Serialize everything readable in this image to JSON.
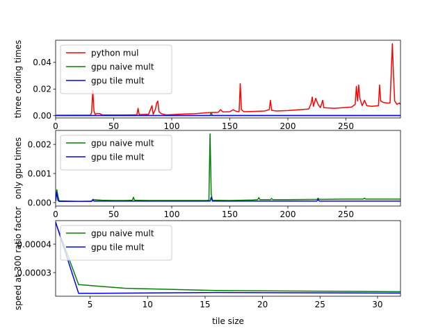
{
  "chart_data": [
    {
      "type": "line",
      "title": "",
      "xlabel": "",
      "ylabel": "three coding times",
      "xlim": [
        0,
        297
      ],
      "ylim": [
        -0.0017,
        0.0566
      ],
      "xticks": [
        0,
        50,
        100,
        150,
        200,
        250
      ],
      "yticks": [
        0.0,
        0.02,
        0.04
      ],
      "ytick_labels": [
        "0.00",
        "0.02",
        "0.04"
      ],
      "legend_position": "top-left",
      "series": [
        {
          "name": "python mul",
          "color": "#ff0000",
          "points": [
            [
              0,
              0.0003
            ],
            [
              30,
              0.0004
            ],
            [
              31,
              0.0025
            ],
            [
              32,
              0.019
            ],
            [
              33,
              0.0035
            ],
            [
              34,
              0.001
            ],
            [
              36,
              0.0017
            ],
            [
              38,
              0.0015
            ],
            [
              40,
              0.0006
            ],
            [
              45,
              0.0005
            ],
            [
              55,
              0.0005
            ],
            [
              65,
              0.0006
            ],
            [
              70,
              0.0007
            ],
            [
              71,
              0.0055
            ],
            [
              72,
              0.0008
            ],
            [
              80,
              0.001
            ],
            [
              83,
              0.0075
            ],
            [
              84,
              0.001
            ],
            [
              86,
              0.005
            ],
            [
              87,
              0.0095
            ],
            [
              88,
              0.011
            ],
            [
              89,
              0.003
            ],
            [
              91,
              0.0015
            ],
            [
              95,
              0.0006
            ],
            [
              100,
              0.0008
            ],
            [
              110,
              0.0012
            ],
            [
              120,
              0.0015
            ],
            [
              130,
              0.0022
            ],
            [
              140,
              0.0025
            ],
            [
              142,
              0.0045
            ],
            [
              144,
              0.0028
            ],
            [
              150,
              0.003
            ],
            [
              153,
              0.0045
            ],
            [
              154,
              0.0038
            ],
            [
              156,
              0.0032
            ],
            [
              158,
              0.003
            ],
            [
              159,
              0.024
            ],
            [
              160,
              0.0045
            ],
            [
              162,
              0.003
            ],
            [
              170,
              0.0032
            ],
            [
              180,
              0.0035
            ],
            [
              184,
              0.0045
            ],
            [
              185,
              0.0115
            ],
            [
              186,
              0.004
            ],
            [
              190,
              0.0035
            ],
            [
              200,
              0.0038
            ],
            [
              210,
              0.0045
            ],
            [
              218,
              0.005
            ],
            [
              220,
              0.009
            ],
            [
              221,
              0.014
            ],
            [
              222,
              0.007
            ],
            [
              224,
              0.013
            ],
            [
              226,
              0.0085
            ],
            [
              228,
              0.006
            ],
            [
              230,
              0.0115
            ],
            [
              231,
              0.006
            ],
            [
              240,
              0.0055
            ],
            [
              250,
              0.0062
            ],
            [
              255,
              0.0065
            ],
            [
              258,
              0.0085
            ],
            [
              259,
              0.022
            ],
            [
              260,
              0.011
            ],
            [
              261,
              0.023
            ],
            [
              262,
              0.013
            ],
            [
              264,
              0.0075
            ],
            [
              266,
              0.0115
            ],
            [
              268,
              0.0075
            ],
            [
              272,
              0.007
            ],
            [
              278,
              0.0075
            ],
            [
              279,
              0.023
            ],
            [
              280,
              0.011
            ],
            [
              282,
              0.01
            ],
            [
              285,
              0.0095
            ],
            [
              288,
              0.0095
            ],
            [
              290,
              0.054
            ],
            [
              291,
              0.03
            ],
            [
              292,
              0.011
            ],
            [
              294,
              0.0085
            ],
            [
              296,
              0.0095
            ],
            [
              297,
              0.0085
            ]
          ]
        },
        {
          "name": "gpu naive mult",
          "color": "#008000",
          "points": [
            [
              0,
              0.0001
            ],
            [
              133,
              0.0001
            ],
            [
              134,
              0.0024
            ],
            [
              135,
              0.0001
            ],
            [
              297,
              0.0001
            ]
          ]
        },
        {
          "name": "gpu tile mult",
          "color": "#0000ff",
          "points": [
            [
              0,
              0.0001
            ],
            [
              297,
              0.0001
            ]
          ]
        }
      ]
    },
    {
      "type": "line",
      "title": "",
      "xlabel": "",
      "ylabel": "only gpu times",
      "xlim": [
        0,
        297
      ],
      "ylim": [
        -0.00012,
        0.00248
      ],
      "xticks": [
        0,
        50,
        100,
        150,
        200,
        250
      ],
      "yticks": [
        0.0,
        0.001,
        0.002
      ],
      "ytick_labels": [
        "0.000",
        "0.001",
        "0.002"
      ],
      "legend_position": "top-left",
      "series": [
        {
          "name": "gpu naive mult",
          "color": "#008000",
          "points": [
            [
              0,
              5e-05
            ],
            [
              1,
              0.00044
            ],
            [
              2,
              0.00022
            ],
            [
              3,
              6e-05
            ],
            [
              10,
              5e-05
            ],
            [
              20,
              4e-05
            ],
            [
              31,
              5e-05
            ],
            [
              32,
              0.00011
            ],
            [
              33,
              0.0001
            ],
            [
              40,
              8e-05
            ],
            [
              50,
              7e-05
            ],
            [
              60,
              7e-05
            ],
            [
              66,
              8e-05
            ],
            [
              67,
              0.00018
            ],
            [
              68,
              8e-05
            ],
            [
              80,
              7e-05
            ],
            [
              90,
              7e-05
            ],
            [
              100,
              7e-05
            ],
            [
              110,
              7e-05
            ],
            [
              120,
              7e-05
            ],
            [
              130,
              7e-05
            ],
            [
              132,
              8e-05
            ],
            [
              133,
              0.00236
            ],
            [
              134,
              0.0003
            ],
            [
              135,
              8e-05
            ],
            [
              150,
              7e-05
            ],
            [
              160,
              8e-05
            ],
            [
              170,
              9e-05
            ],
            [
              174,
              0.0001
            ],
            [
              175,
              0.00017
            ],
            [
              176,
              0.0001
            ],
            [
              185,
              0.0001
            ],
            [
              186,
              0.00014
            ],
            [
              187,
              0.0001
            ],
            [
              200,
              0.0001
            ],
            [
              225,
              0.00011
            ],
            [
              226,
              0.00015
            ],
            [
              227,
              0.00011
            ],
            [
              250,
              0.00012
            ],
            [
              265,
              0.00012
            ],
            [
              266,
              0.00015
            ],
            [
              267,
              0.00012
            ],
            [
              297,
              0.00012
            ]
          ]
        },
        {
          "name": "gpu tile mult",
          "color": "#0000ff",
          "points": [
            [
              0,
              5e-05
            ],
            [
              1,
              0.00035
            ],
            [
              2,
              8e-05
            ],
            [
              3,
              4e-05
            ],
            [
              31,
              4e-05
            ],
            [
              32,
              9e-05
            ],
            [
              33,
              5e-05
            ],
            [
              50,
              5e-05
            ],
            [
              100,
              5e-05
            ],
            [
              133,
              5e-05
            ],
            [
              134,
              0.00018
            ],
            [
              135,
              5e-05
            ],
            [
              150,
              5e-05
            ],
            [
              200,
              5e-05
            ],
            [
              225,
              5e-05
            ],
            [
              226,
              0.00011
            ],
            [
              227,
              5e-05
            ],
            [
              250,
              5e-05
            ],
            [
              297,
              5e-05
            ]
          ]
        }
      ]
    },
    {
      "type": "line",
      "title": "",
      "xlabel": "tile size",
      "ylabel": "speed at 300 ratio factor",
      "xlim": [
        2,
        32
      ],
      "ylim": [
        2.17e-05,
        4.83e-05
      ],
      "xticks": [
        5,
        10,
        15,
        20,
        25,
        30
      ],
      "yticks": [
        3e-05,
        4e-05
      ],
      "ytick_labels": [
        "0.00003",
        "0.00004"
      ],
      "legend_position": "top-left",
      "series": [
        {
          "name": "gpu naive mult",
          "color": "#008000",
          "points": [
            [
              2,
              4.75e-05
            ],
            [
              4,
              2.58e-05
            ],
            [
              8,
              2.45e-05
            ],
            [
              16,
              2.37e-05
            ],
            [
              32,
              2.33e-05
            ]
          ]
        },
        {
          "name": "gpu tile mult",
          "color": "#0000ff",
          "points": [
            [
              2,
              4.78e-05
            ],
            [
              4,
              2.27e-05
            ],
            [
              8,
              2.28e-05
            ],
            [
              16,
              2.3e-05
            ],
            [
              32,
              2.28e-05
            ]
          ]
        }
      ]
    }
  ]
}
